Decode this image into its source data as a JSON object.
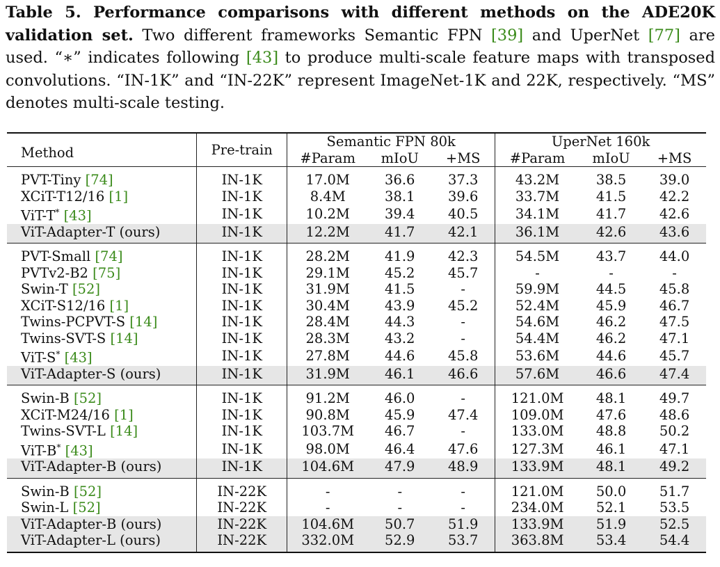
{
  "caption": {
    "label": "Table 5. Performance comparisons with different methods on the ADE20K validation set.",
    "part1": " Two different frameworks Semantic FPN ",
    "cite1": "[39]",
    "part2": " and UperNet ",
    "cite2": "[77]",
    "part3": " are used. “∗” indicates following ",
    "cite3": "[43]",
    "part4": " to produce multi-scale feature maps with transposed convolutions. “IN-1K” and “IN-22K” represent ImageNet-1K and 22K, respectively. “MS” denotes multi-scale testing."
  },
  "header": {
    "method": "Method",
    "pretrain": "Pre-train",
    "fpn": "Semantic FPN 80k",
    "upernet": "UperNet 160k",
    "param": "#Param",
    "miou": "mIoU",
    "ms": "+MS"
  },
  "groups": [
    {
      "rows": [
        {
          "name": "PVT-Tiny ",
          "cite": "[74]",
          "star": "",
          "pre": "IN-1K",
          "v": [
            "17.0M",
            "36.6",
            "37.3",
            "43.2M",
            "38.5",
            "39.0"
          ],
          "hl": false
        },
        {
          "name": "XCiT-T12/16 ",
          "cite": "[1]",
          "star": "",
          "pre": "IN-1K",
          "v": [
            "8.4M",
            "38.1",
            "39.6",
            "33.7M",
            "41.5",
            "42.2"
          ],
          "hl": false
        },
        {
          "name": "ViT-T",
          "cite": "[43]",
          "star": "*",
          "pre": "IN-1K",
          "v": [
            "10.2M",
            "39.4",
            "40.5",
            "34.1M",
            "41.7",
            "42.6"
          ],
          "hl": false
        },
        {
          "name": "ViT-Adapter-T (ours)",
          "cite": "",
          "star": "",
          "pre": "IN-1K",
          "v": [
            "12.2M",
            "41.7",
            "42.1",
            "36.1M",
            "42.6",
            "43.6"
          ],
          "hl": true
        }
      ]
    },
    {
      "rows": [
        {
          "name": "PVT-Small ",
          "cite": "[74]",
          "star": "",
          "pre": "IN-1K",
          "v": [
            "28.2M",
            "41.9",
            "42.3",
            "54.5M",
            "43.7",
            "44.0"
          ],
          "hl": false
        },
        {
          "name": "PVTv2-B2 ",
          "cite": "[75]",
          "star": "",
          "pre": "IN-1K",
          "v": [
            "29.1M",
            "45.2",
            "45.7",
            "-",
            "-",
            "-"
          ],
          "hl": false
        },
        {
          "name": "Swin-T ",
          "cite": "[52]",
          "star": "",
          "pre": "IN-1K",
          "v": [
            "31.9M",
            "41.5",
            "-",
            "59.9M",
            "44.5",
            "45.8"
          ],
          "hl": false
        },
        {
          "name": "XCiT-S12/16 ",
          "cite": "[1]",
          "star": "",
          "pre": "IN-1K",
          "v": [
            "30.4M",
            "43.9",
            "45.2",
            "52.4M",
            "45.9",
            "46.7"
          ],
          "hl": false
        },
        {
          "name": "Twins-PCPVT-S ",
          "cite": "[14]",
          "star": "",
          "pre": "IN-1K",
          "v": [
            "28.4M",
            "44.3",
            "-",
            "54.6M",
            "46.2",
            "47.5"
          ],
          "hl": false
        },
        {
          "name": "Twins-SVT-S ",
          "cite": "[14]",
          "star": "",
          "pre": "IN-1K",
          "v": [
            "28.3M",
            "43.2",
            "-",
            "54.4M",
            "46.2",
            "47.1"
          ],
          "hl": false
        },
        {
          "name": "ViT-S",
          "cite": "[43]",
          "star": "*",
          "pre": "IN-1K",
          "v": [
            "27.8M",
            "44.6",
            "45.8",
            "53.6M",
            "44.6",
            "45.7"
          ],
          "hl": false
        },
        {
          "name": "ViT-Adapter-S (ours)",
          "cite": "",
          "star": "",
          "pre": "IN-1K",
          "v": [
            "31.9M",
            "46.1",
            "46.6",
            "57.6M",
            "46.6",
            "47.4"
          ],
          "hl": true
        }
      ]
    },
    {
      "rows": [
        {
          "name": "Swin-B ",
          "cite": "[52]",
          "star": "",
          "pre": "IN-1K",
          "v": [
            "91.2M",
            "46.0",
            "-",
            "121.0M",
            "48.1",
            "49.7"
          ],
          "hl": false
        },
        {
          "name": "XCiT-M24/16 ",
          "cite": "[1]",
          "star": "",
          "pre": "IN-1K",
          "v": [
            "90.8M",
            "45.9",
            "47.4",
            "109.0M",
            "47.6",
            "48.6"
          ],
          "hl": false
        },
        {
          "name": "Twins-SVT-L ",
          "cite": "[14]",
          "star": "",
          "pre": "IN-1K",
          "v": [
            "103.7M",
            "46.7",
            "-",
            "133.0M",
            "48.8",
            "50.2"
          ],
          "hl": false
        },
        {
          "name": "ViT-B",
          "cite": "[43]",
          "star": "*",
          "pre": "IN-1K",
          "v": [
            "98.0M",
            "46.4",
            "47.6",
            "127.3M",
            "46.1",
            "47.1"
          ],
          "hl": false
        },
        {
          "name": "ViT-Adapter-B (ours)",
          "cite": "",
          "star": "",
          "pre": "IN-1K",
          "v": [
            "104.6M",
            "47.9",
            "48.9",
            "133.9M",
            "48.1",
            "49.2"
          ],
          "hl": true
        }
      ]
    },
    {
      "rows": [
        {
          "name": "Swin-B ",
          "cite": "[52]",
          "star": "",
          "pre": "IN-22K",
          "v": [
            "-",
            "-",
            "-",
            "121.0M",
            "50.0",
            "51.7"
          ],
          "hl": false
        },
        {
          "name": "Swin-L ",
          "cite": "[52]",
          "star": "",
          "pre": "IN-22K",
          "v": [
            "-",
            "-",
            "-",
            "234.0M",
            "52.1",
            "53.5"
          ],
          "hl": false
        },
        {
          "name": "ViT-Adapter-B (ours)",
          "cite": "",
          "star": "",
          "pre": "IN-22K",
          "v": [
            "104.6M",
            "50.7",
            "51.9",
            "133.9M",
            "51.9",
            "52.5"
          ],
          "hl": true
        },
        {
          "name": "ViT-Adapter-L (ours)",
          "cite": "",
          "star": "",
          "pre": "IN-22K",
          "v": [
            "332.0M",
            "52.9",
            "53.7",
            "363.8M",
            "53.4",
            "54.4"
          ],
          "hl": true
        }
      ]
    }
  ]
}
